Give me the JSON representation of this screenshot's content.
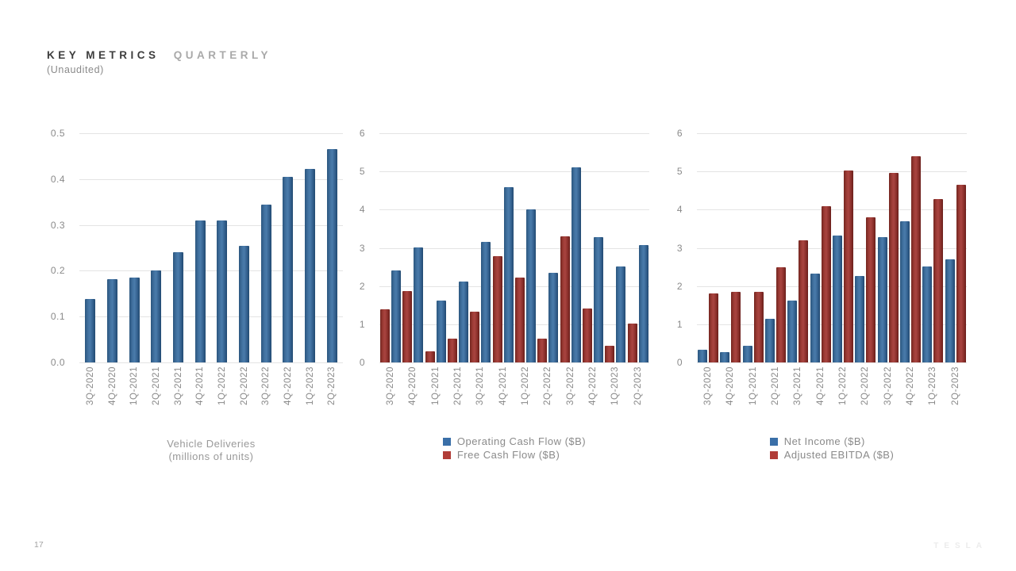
{
  "slide": {
    "title": {
      "primary": "KEY METRICS",
      "secondary": "QUARTERLY"
    },
    "subtitle": "(Unaudited)",
    "page_number": "17",
    "brand": "TESLA"
  },
  "colors": {
    "blue": "#3a6fa8",
    "red": "#b13c37",
    "grid": "#e4e4e4",
    "axis_text": "#8a8a8a",
    "legend_text": "#8a8a8a"
  },
  "chart_data": [
    {
      "type": "bar",
      "name": "vehicle-deliveries",
      "title": "",
      "xlabel": "",
      "ylabel": "",
      "ylim": [
        0,
        0.5
      ],
      "yticks": [
        0,
        0.1,
        0.2,
        0.3,
        0.4,
        0.5
      ],
      "ytick_labels": [
        "0.0",
        "0.1",
        "0.2",
        "0.3",
        "0.4",
        "0.5"
      ],
      "grid": "horizontal",
      "legend_position": "bottom-center",
      "legend_style": "caption",
      "caption_lines": [
        "Vehicle Deliveries",
        "(millions of units)"
      ],
      "categories": [
        "3Q-2020",
        "4Q-2020",
        "1Q-2021",
        "2Q-2021",
        "3Q-2021",
        "4Q-2021",
        "1Q-2022",
        "2Q-2022",
        "3Q-2022",
        "4Q-2022",
        "1Q-2023",
        "2Q-2023"
      ],
      "series": [
        {
          "name": "Vehicle Deliveries (millions of units)",
          "color_key": "blue",
          "group_slot": 0,
          "values": [
            0.139,
            0.181,
            0.185,
            0.201,
            0.241,
            0.309,
            0.31,
            0.255,
            0.344,
            0.405,
            0.423,
            0.466
          ]
        }
      ]
    },
    {
      "type": "bar",
      "name": "cash-flow",
      "title": "",
      "xlabel": "",
      "ylabel": "",
      "ylim": [
        0,
        6
      ],
      "yticks": [
        0,
        1,
        2,
        3,
        4,
        5,
        6
      ],
      "ytick_labels": [
        "0",
        "1",
        "2",
        "3",
        "4",
        "5",
        "6"
      ],
      "grid": "horizontal",
      "legend_position": "bottom-center",
      "legend_style": "series",
      "categories": [
        "3Q-2020",
        "4Q-2020",
        "1Q-2021",
        "2Q-2021",
        "3Q-2021",
        "4Q-2021",
        "1Q-2022",
        "2Q-2022",
        "3Q-2022",
        "4Q-2022",
        "1Q-2023",
        "2Q-2023"
      ],
      "series": [
        {
          "name": "Operating Cash Flow ($B)",
          "color_key": "blue",
          "group_slot": 1,
          "values": [
            2.4,
            3.02,
            1.62,
            2.12,
            3.15,
            4.59,
            4.0,
            2.35,
            5.1,
            3.28,
            2.51,
            3.07
          ]
        },
        {
          "name": "Free Cash Flow ($B)",
          "color_key": "red",
          "group_slot": 0,
          "values": [
            1.4,
            1.87,
            0.29,
            0.62,
            1.33,
            2.78,
            2.23,
            0.62,
            3.3,
            1.42,
            0.44,
            1.01
          ]
        }
      ]
    },
    {
      "type": "bar",
      "name": "profitability",
      "title": "",
      "xlabel": "",
      "ylabel": "",
      "ylim": [
        0,
        6
      ],
      "yticks": [
        0,
        1,
        2,
        3,
        4,
        5,
        6
      ],
      "ytick_labels": [
        "0",
        "1",
        "2",
        "3",
        "4",
        "5",
        "6"
      ],
      "grid": "horizontal",
      "legend_position": "bottom-center",
      "legend_style": "series",
      "categories": [
        "3Q-2020",
        "4Q-2020",
        "1Q-2021",
        "2Q-2021",
        "3Q-2021",
        "4Q-2021",
        "1Q-2022",
        "2Q-2022",
        "3Q-2022",
        "4Q-2022",
        "1Q-2023",
        "2Q-2023"
      ],
      "series": [
        {
          "name": "Net Income ($B)",
          "color_key": "blue",
          "group_slot": 0,
          "values": [
            0.33,
            0.27,
            0.44,
            1.14,
            1.62,
            2.32,
            3.32,
            2.26,
            3.29,
            3.69,
            2.51,
            2.7
          ]
        },
        {
          "name": "Adjusted EBITDA ($B)",
          "color_key": "red",
          "group_slot": 1,
          "values": [
            1.81,
            1.85,
            1.84,
            2.49,
            3.2,
            4.09,
            5.02,
            3.79,
            4.97,
            5.4,
            4.27,
            4.65
          ]
        }
      ]
    }
  ]
}
